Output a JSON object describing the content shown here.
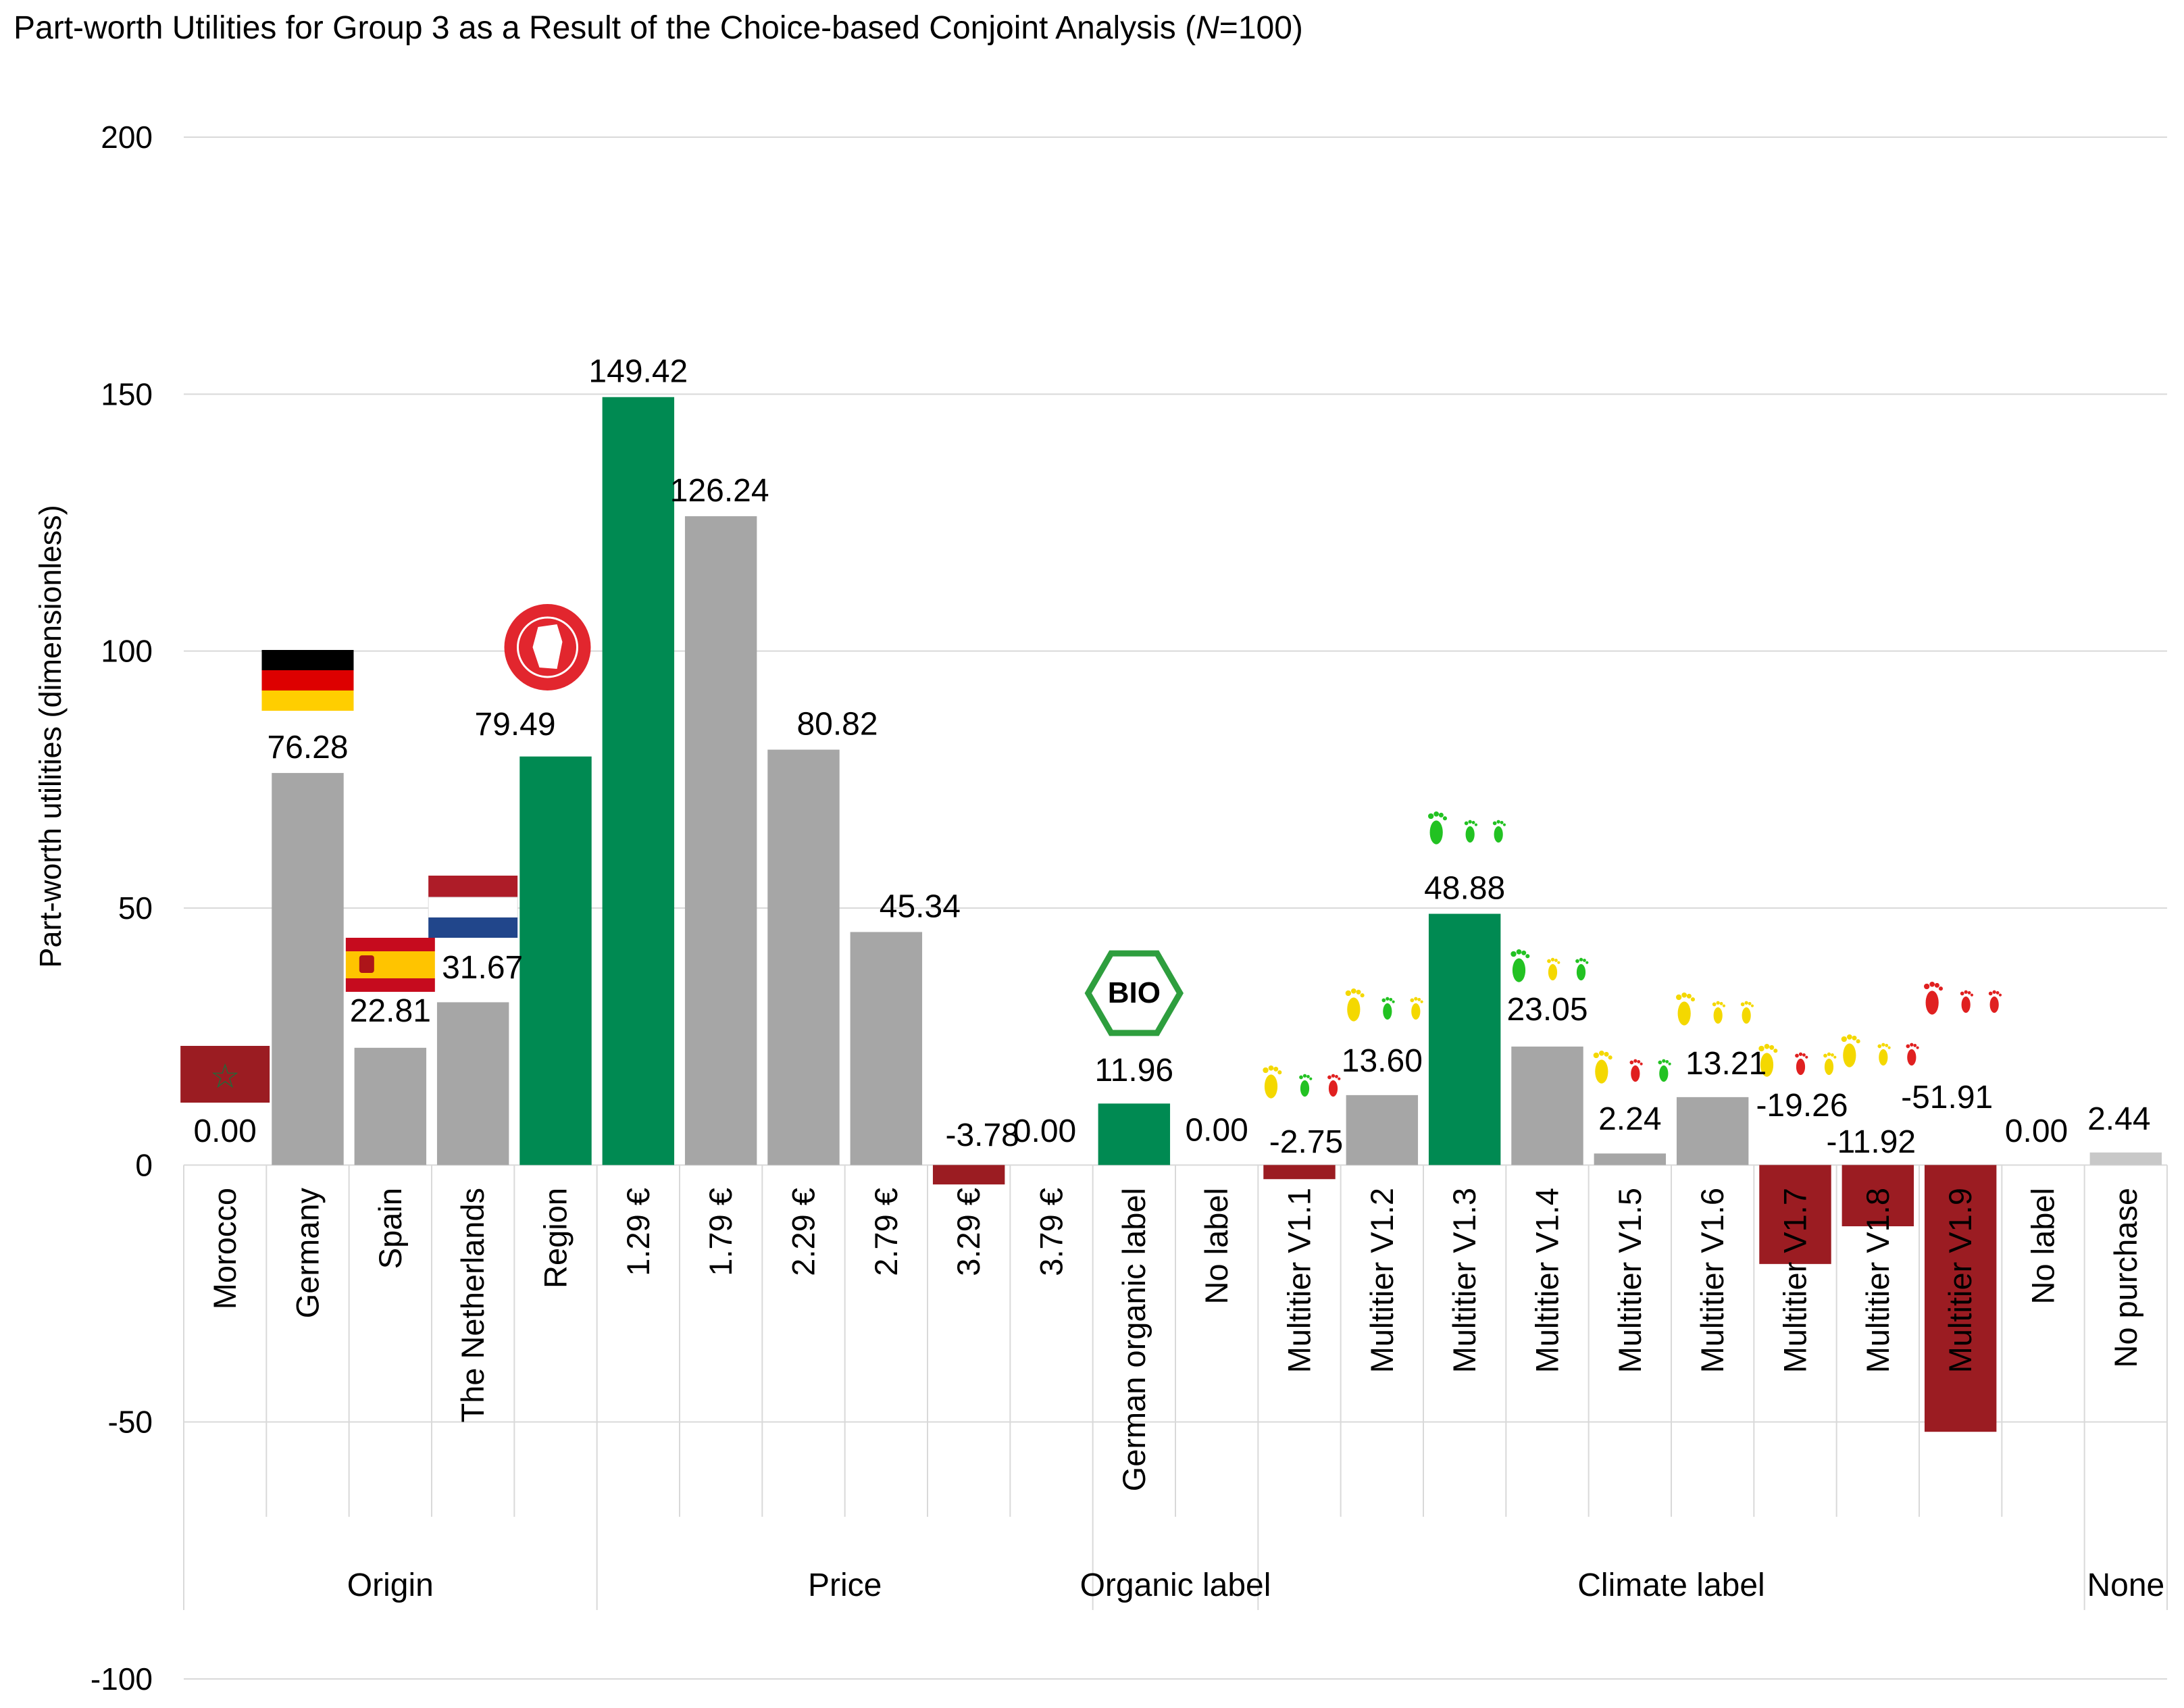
{
  "chart_data": {
    "type": "bar",
    "title_main": "Part-worth Utilities for Group 3 as a Result of the Choice-based Conjoint Analysis (",
    "title_n": "N",
    "title_suffix": "=100)",
    "ylabel": "Part-worth utilities (dimensionless)",
    "xlabel": "",
    "ylim": [
      -100,
      200
    ],
    "yticks": [
      200,
      150,
      100,
      50,
      0,
      -50,
      -100
    ],
    "grid": true,
    "categories": [
      "Morocco",
      "Germany",
      "Spain",
      "The Netherlands",
      "Region",
      "1.29 €",
      "1.79 €",
      "2.29 €",
      "2.79 €",
      "3.29 €",
      "3.79 €",
      "German organic label",
      "No label",
      "Multitier V1.1",
      "Multitier V1.2",
      "Multitier V1.3",
      "Multitier V1.4",
      "Multitier V1.5",
      "Multitier V1.6",
      "Multitier V1.7",
      "Multitier V1.8",
      "Multitier V1.9",
      "No label",
      "No purchase"
    ],
    "values": [
      0.0,
      76.28,
      22.81,
      31.67,
      79.49,
      149.42,
      126.24,
      80.82,
      45.34,
      -3.78,
      0.0,
      11.96,
      0.0,
      -2.75,
      13.6,
      48.88,
      23.05,
      2.24,
      13.21,
      -19.26,
      -11.92,
      -51.91,
      0.0,
      2.44
    ],
    "value_labels": [
      "0.00",
      "76.28",
      "22.81",
      "31.67",
      "79.49",
      "149.42",
      "126.24",
      "80.82",
      "45.34",
      "-3.78",
      "0.00",
      "11.96",
      "0.00",
      "-2.75",
      "13.60",
      "48.88",
      "23.05",
      "2.24",
      "13.21",
      "-19.26",
      "-11.92",
      "-51.91",
      "0.00",
      "2.44"
    ],
    "bar_status": [
      "red",
      "grey",
      "grey",
      "grey",
      "green",
      "green",
      "grey",
      "grey",
      "grey",
      "red",
      "none",
      "green",
      "none",
      "red",
      "grey",
      "green",
      "grey",
      "grey",
      "grey",
      "red",
      "red",
      "red",
      "none",
      "lightgrey"
    ],
    "groups": [
      {
        "name": "Origin",
        "start": 0,
        "end": 4
      },
      {
        "name": "Price",
        "start": 5,
        "end": 10
      },
      {
        "name": "Organic label",
        "start": 11,
        "end": 12
      },
      {
        "name": "Climate label",
        "start": 13,
        "end": 22
      },
      {
        "name": "None",
        "start": 23,
        "end": 23
      }
    ],
    "colors": {
      "green": "#008a52",
      "grey": "#a6a6a6",
      "red": "#9b1c22",
      "lightgrey": "#c8c8c8",
      "gridline": "#d9d9d9",
      "morocco_star": "#1f6b3a"
    },
    "icons": [
      {
        "index": 0,
        "icon": "morocco-flag-icon"
      },
      {
        "index": 1,
        "icon": "germany-flag-icon"
      },
      {
        "index": 2,
        "icon": "spain-flag-icon"
      },
      {
        "index": 3,
        "icon": "netherlands-flag-icon"
      },
      {
        "index": 4,
        "icon": "regional-seal-icon"
      },
      {
        "index": 11,
        "icon": "bio-label-icon"
      },
      {
        "index": 13,
        "icon": "footprint-icon",
        "colors": [
          "yellow",
          "green",
          "red"
        ]
      },
      {
        "index": 14,
        "icon": "footprint-icon",
        "colors": [
          "yellow",
          "green",
          "yellow"
        ]
      },
      {
        "index": 15,
        "icon": "footprint-icon",
        "colors": [
          "green",
          "green",
          "green"
        ]
      },
      {
        "index": 16,
        "icon": "footprint-icon",
        "colors": [
          "green",
          "yellow",
          "green"
        ]
      },
      {
        "index": 17,
        "icon": "footprint-icon",
        "colors": [
          "yellow",
          "red",
          "green"
        ]
      },
      {
        "index": 18,
        "icon": "footprint-icon",
        "colors": [
          "yellow",
          "yellow",
          "yellow"
        ]
      },
      {
        "index": 19,
        "icon": "footprint-icon",
        "colors": [
          "yellow",
          "red",
          "yellow"
        ]
      },
      {
        "index": 20,
        "icon": "footprint-icon",
        "colors": [
          "yellow",
          "yellow",
          "red"
        ]
      },
      {
        "index": 21,
        "icon": "footprint-icon",
        "colors": [
          "red",
          "red",
          "red"
        ]
      }
    ]
  }
}
